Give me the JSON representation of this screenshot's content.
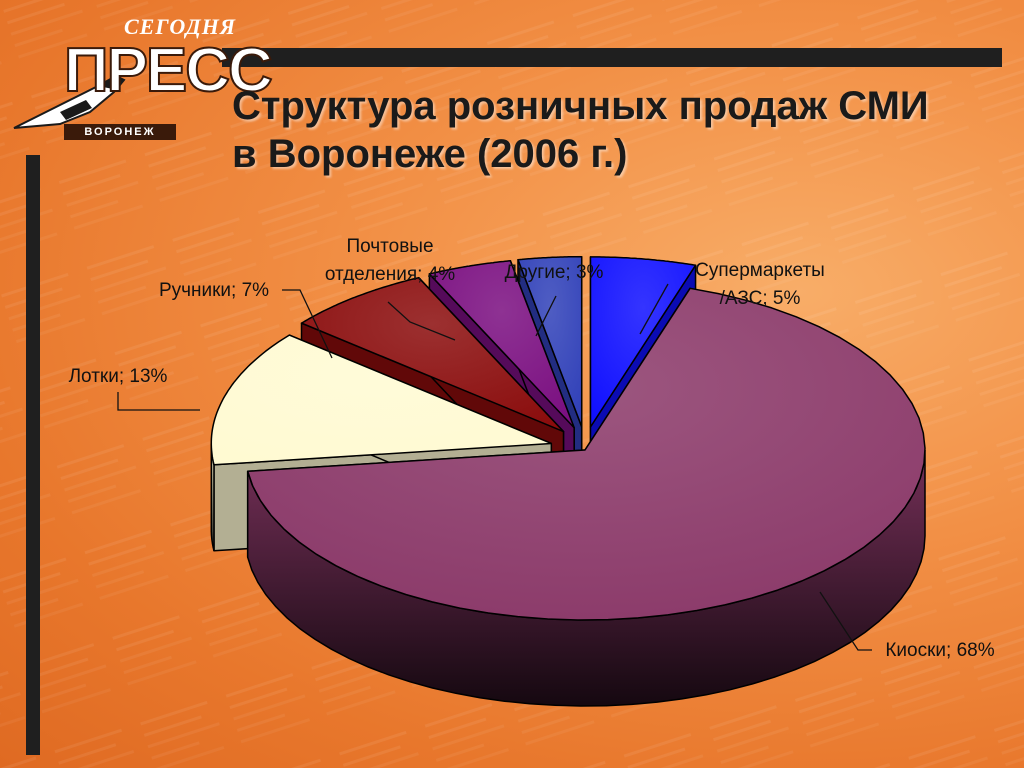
{
  "logo": {
    "top_text": "СЕГОДНЯ",
    "main_text": "ПРЕСС",
    "sub_text": "ВОРОНЕЖ"
  },
  "slide": {
    "title_line1": "Структура розничных продаж СМИ",
    "title_line2": "в Воронеже (2006 г.)"
  },
  "colors": {
    "background": "#f08a3e",
    "bars": "#1f1f1f"
  },
  "chart_data": {
    "type": "pie",
    "title": "",
    "label_separator": "; ",
    "slices": [
      {
        "label": "Супермаркеты /АЗС",
        "value": 5,
        "display": "5%",
        "color": "#1010ff",
        "exploded": true
      },
      {
        "label": "Киоски",
        "value": 68,
        "display": "68%",
        "color": "#8a3868",
        "exploded": false
      },
      {
        "label": "Лотки",
        "value": 13,
        "display": "13%",
        "color": "#fffad2",
        "exploded": true
      },
      {
        "label": "Ручники",
        "value": 7,
        "display": "7%",
        "color": "#8a0c0c",
        "exploded": true
      },
      {
        "label": "Почтовые отделения",
        "value": 4,
        "display": "4%",
        "color": "#7a0e80",
        "exploded": true
      },
      {
        "label": "Другие",
        "value": 3,
        "display": "3%",
        "color": "#3040b8",
        "exploded": true
      }
    ]
  }
}
